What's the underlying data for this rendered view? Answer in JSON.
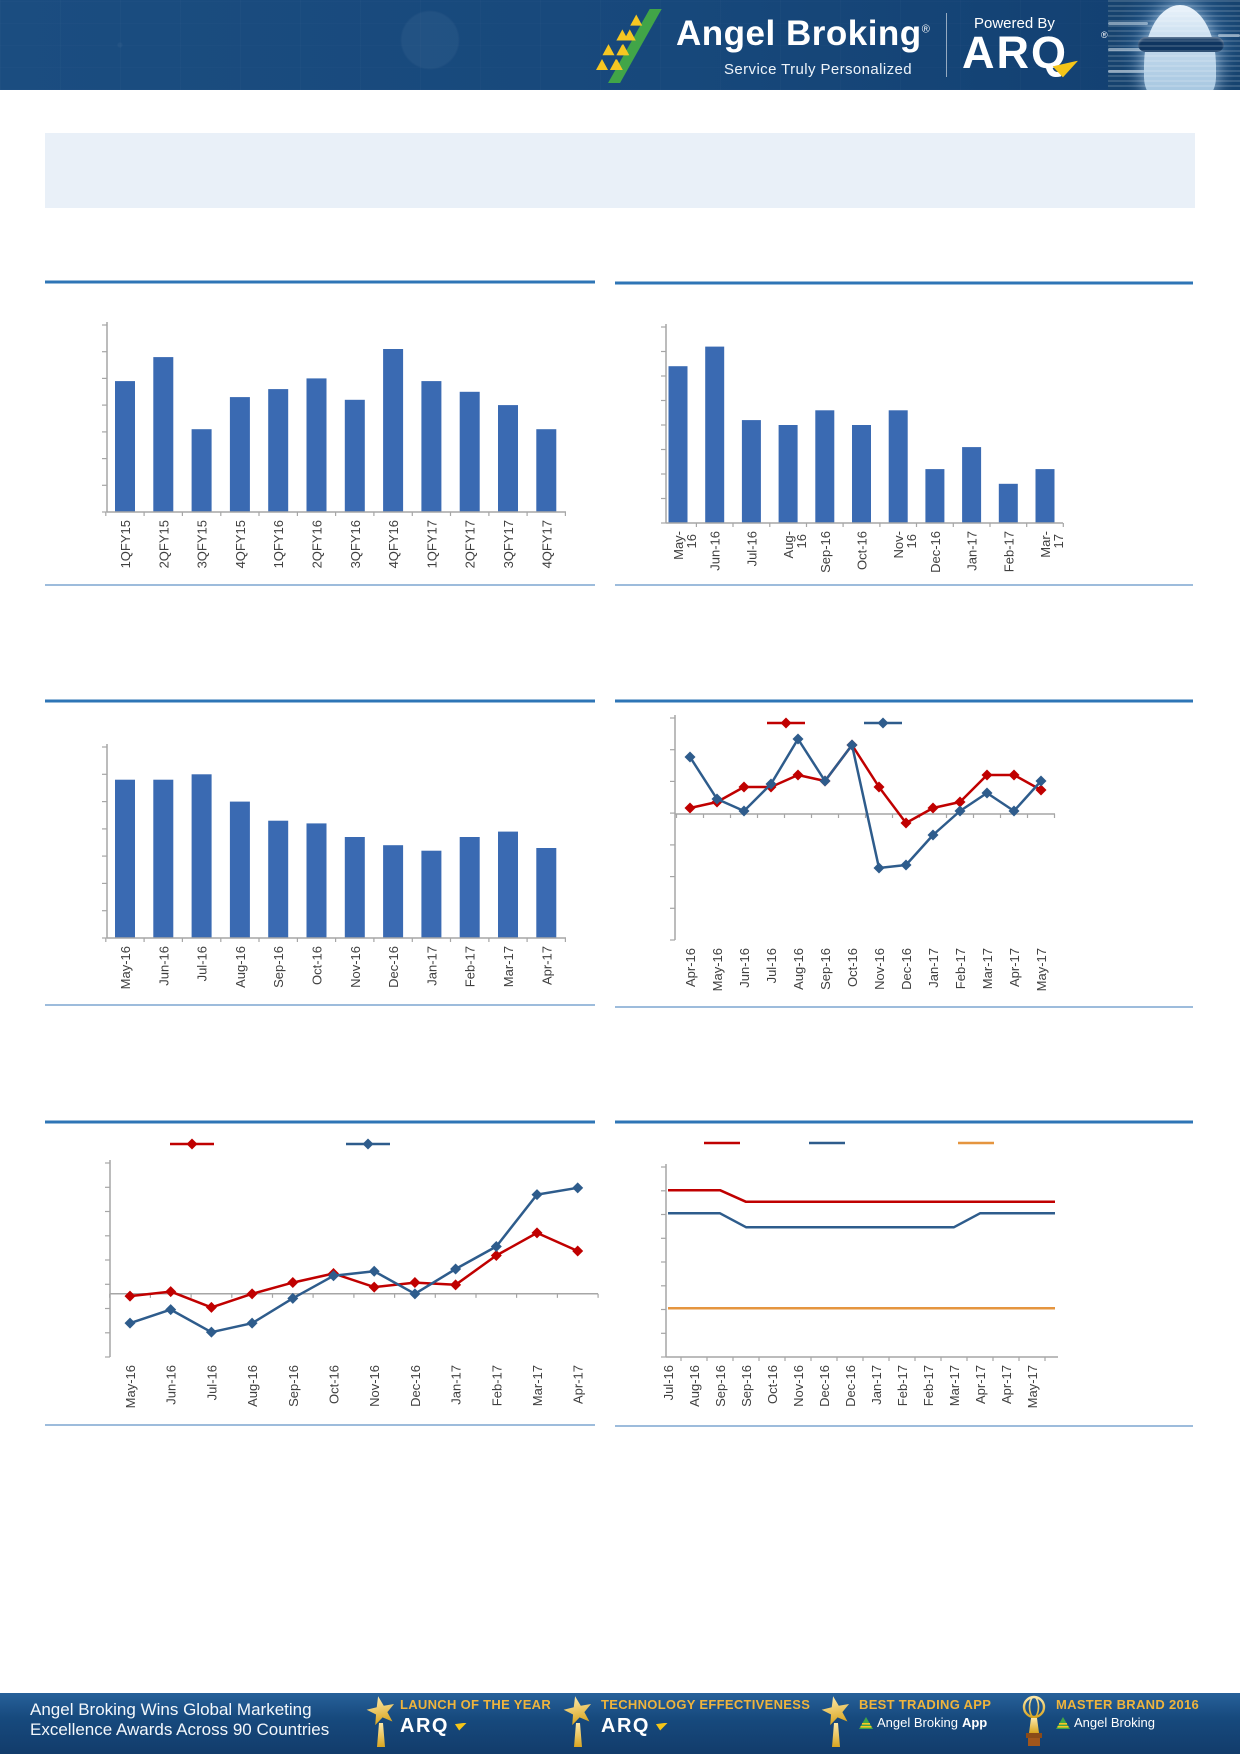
{
  "header": {
    "brand": "Angel Broking",
    "brand_reg": "®",
    "tagline": "Service Truly Personalized",
    "powered_by": "Powered By",
    "arq": "ARQ",
    "arq_reg": "®"
  },
  "banner": {
    "title": ""
  },
  "colors": {
    "bar_blue": "#3a6ab2",
    "line_red": "#c00000",
    "line_blue": "#2e5c8c",
    "line_orange": "#e5953f",
    "separator_blue": "#2e75b6",
    "underline_blue": "#9dbcdc",
    "axis_gray": "#a6a6a6",
    "label_gray": "#3f3f3f",
    "gold": "#efb43c"
  },
  "chart_data": [
    {
      "id": "quarterly-bar-chart",
      "type": "bar",
      "title": "",
      "categories": [
        "1QFY15",
        "2QFY15",
        "3QFY15",
        "4QFY15",
        "1QFY16",
        "2QFY16",
        "3QFY16",
        "4QFY16",
        "1QFY17",
        "2QFY17",
        "3QFY17",
        "4QFY17"
      ],
      "values": [
        4.9,
        5.8,
        3.1,
        4.3,
        4.6,
        5.0,
        4.2,
        6.1,
        4.9,
        4.5,
        4.0,
        3.1
      ],
      "xlabel": "",
      "ylabel": "",
      "ylim": [
        0,
        7
      ],
      "note": "y-axis tick values not visible in source; values estimated from bar heights in axis units"
    },
    {
      "id": "monthly-bar-chart-1",
      "type": "bar",
      "title": "",
      "categories": [
        "May-\n16",
        "Jun-16",
        "Jul-16",
        "Aug-\n16",
        "Sep-16",
        "Oct-16",
        "Nov-\n16",
        "Dec-16",
        "Jan-17",
        "Feb-17",
        "Mar-\n17"
      ],
      "values": [
        6.4,
        7.2,
        4.2,
        4.0,
        4.6,
        4.0,
        4.6,
        2.2,
        3.1,
        1.6,
        2.2
      ],
      "xlabel": "",
      "ylabel": "",
      "ylim": [
        0,
        8
      ],
      "note": "y-axis tick values not visible in source; values estimated from bar heights in axis units"
    },
    {
      "id": "monthly-bar-chart-2",
      "type": "bar",
      "title": "",
      "categories": [
        "May-16",
        "Jun-16",
        "Jul-16",
        "Aug-16",
        "Sep-16",
        "Oct-16",
        "Nov-16",
        "Dec-16",
        "Jan-17",
        "Feb-17",
        "Mar-17",
        "Apr-17"
      ],
      "values": [
        5.8,
        5.8,
        6.0,
        5.0,
        4.3,
        4.2,
        3.7,
        3.4,
        3.2,
        3.7,
        3.9,
        3.3
      ],
      "xlabel": "",
      "ylabel": "",
      "ylim": [
        0,
        7
      ],
      "note": "y-axis tick values not visible in source; values estimated from bar heights in axis units"
    },
    {
      "id": "two-series-line-chart-1",
      "type": "line",
      "title": "",
      "categories": [
        "Apr-16",
        "May-16",
        "Jun-16",
        "Jul-16",
        "Aug-16",
        "Sep-16",
        "Oct-16",
        "Nov-16",
        "Dec-16",
        "Jan-17",
        "Feb-17",
        "Mar-17",
        "Apr-17",
        "May-17"
      ],
      "series": [
        {
          "name": "",
          "color_key": "line_red",
          "values": [
            0.2,
            0.4,
            0.9,
            0.9,
            1.3,
            1.1,
            2.3,
            0.9,
            -0.3,
            0.2,
            0.4,
            1.3,
            1.3,
            0.8
          ]
        },
        {
          "name": "",
          "color_key": "line_blue",
          "values": [
            1.9,
            0.5,
            0.1,
            1.0,
            2.5,
            1.1,
            2.3,
            -1.8,
            -1.7,
            -0.7,
            0.1,
            0.7,
            0.1,
            1.1
          ]
        }
      ],
      "xlabel": "",
      "ylabel": "",
      "ylim": [
        -4.2,
        3.2
      ],
      "legend_position": "top",
      "note": "legend labels and y-axis values not visible in source; values estimated in axis units"
    },
    {
      "id": "two-series-line-chart-2",
      "type": "line",
      "title": "",
      "categories": [
        "May-16",
        "Jun-16",
        "Jul-16",
        "Aug-16",
        "Sep-16",
        "Oct-16",
        "Nov-16",
        "Dec-16",
        "Jan-17",
        "Feb-17",
        "Mar-17",
        "Apr-17"
      ],
      "series": [
        {
          "name": "",
          "color_key": "line_red",
          "values": [
            -0.1,
            0.1,
            -0.6,
            0.0,
            0.5,
            0.9,
            0.3,
            0.5,
            0.4,
            1.7,
            2.7,
            1.9
          ]
        },
        {
          "name": "",
          "color_key": "line_blue",
          "values": [
            -1.3,
            -0.7,
            -1.7,
            -1.3,
            -0.2,
            0.8,
            1.0,
            0.0,
            1.1,
            2.1,
            4.4,
            4.7
          ]
        }
      ],
      "xlabel": "",
      "ylabel": "",
      "ylim": [
        -2.8,
        5.8
      ],
      "legend_position": "top",
      "note": "legend labels and y-axis values not visible in source; values estimated in axis units"
    },
    {
      "id": "three-series-step-line-chart",
      "type": "line",
      "title": "",
      "categories": [
        "Jul-16",
        "Aug-16",
        "Sep-16",
        "Sep-16",
        "Oct-16",
        "Nov-16",
        "Dec-16",
        "Dec-16",
        "Jan-17",
        "Feb-17",
        "Feb-17",
        "Mar-17",
        "Apr-17",
        "Apr-17",
        "May-17"
      ],
      "series": [
        {
          "name": "",
          "color_key": "line_red",
          "values": [
            7.2,
            7.2,
            7.2,
            6.7,
            6.7,
            6.7,
            6.7,
            6.7,
            6.7,
            6.7,
            6.7,
            6.7,
            6.7,
            6.7,
            6.7
          ]
        },
        {
          "name": "",
          "color_key": "line_blue",
          "values": [
            6.2,
            6.2,
            6.2,
            5.6,
            5.6,
            5.6,
            5.6,
            5.6,
            5.6,
            5.6,
            5.6,
            5.6,
            6.2,
            6.2,
            6.2
          ]
        },
        {
          "name": "",
          "color_key": "line_orange",
          "values": [
            2.1,
            2.1,
            2.1,
            2.1,
            2.1,
            2.1,
            2.1,
            2.1,
            2.1,
            2.1,
            2.1,
            2.1,
            2.1,
            2.1,
            2.1
          ]
        }
      ],
      "xlabel": "",
      "ylabel": "",
      "ylim": [
        0,
        8.2
      ],
      "legend_position": "top",
      "note": "legend labels and y-axis values not visible in source; values estimated in axis units"
    }
  ],
  "footer": {
    "headline_line1": "Angel Broking Wins Global Marketing",
    "headline_line2": "Excellence Awards Across 90 Countries",
    "awards": [
      {
        "title": "LAUNCH OF THE YEAR",
        "brand": "ARQ",
        "brand_bold": "",
        "icon": "star-trophy"
      },
      {
        "title": "TECHNOLOGY EFFECTIVENESS",
        "brand": "ARQ",
        "brand_bold": "",
        "icon": "star-trophy"
      },
      {
        "title": "BEST TRADING APP",
        "brand": "Angel Broking",
        "brand_bold": "App",
        "icon": "star-trophy"
      },
      {
        "title": "MASTER BRAND 2016",
        "brand": "Angel Broking",
        "brand_bold": "",
        "icon": "globe-trophy"
      }
    ]
  }
}
